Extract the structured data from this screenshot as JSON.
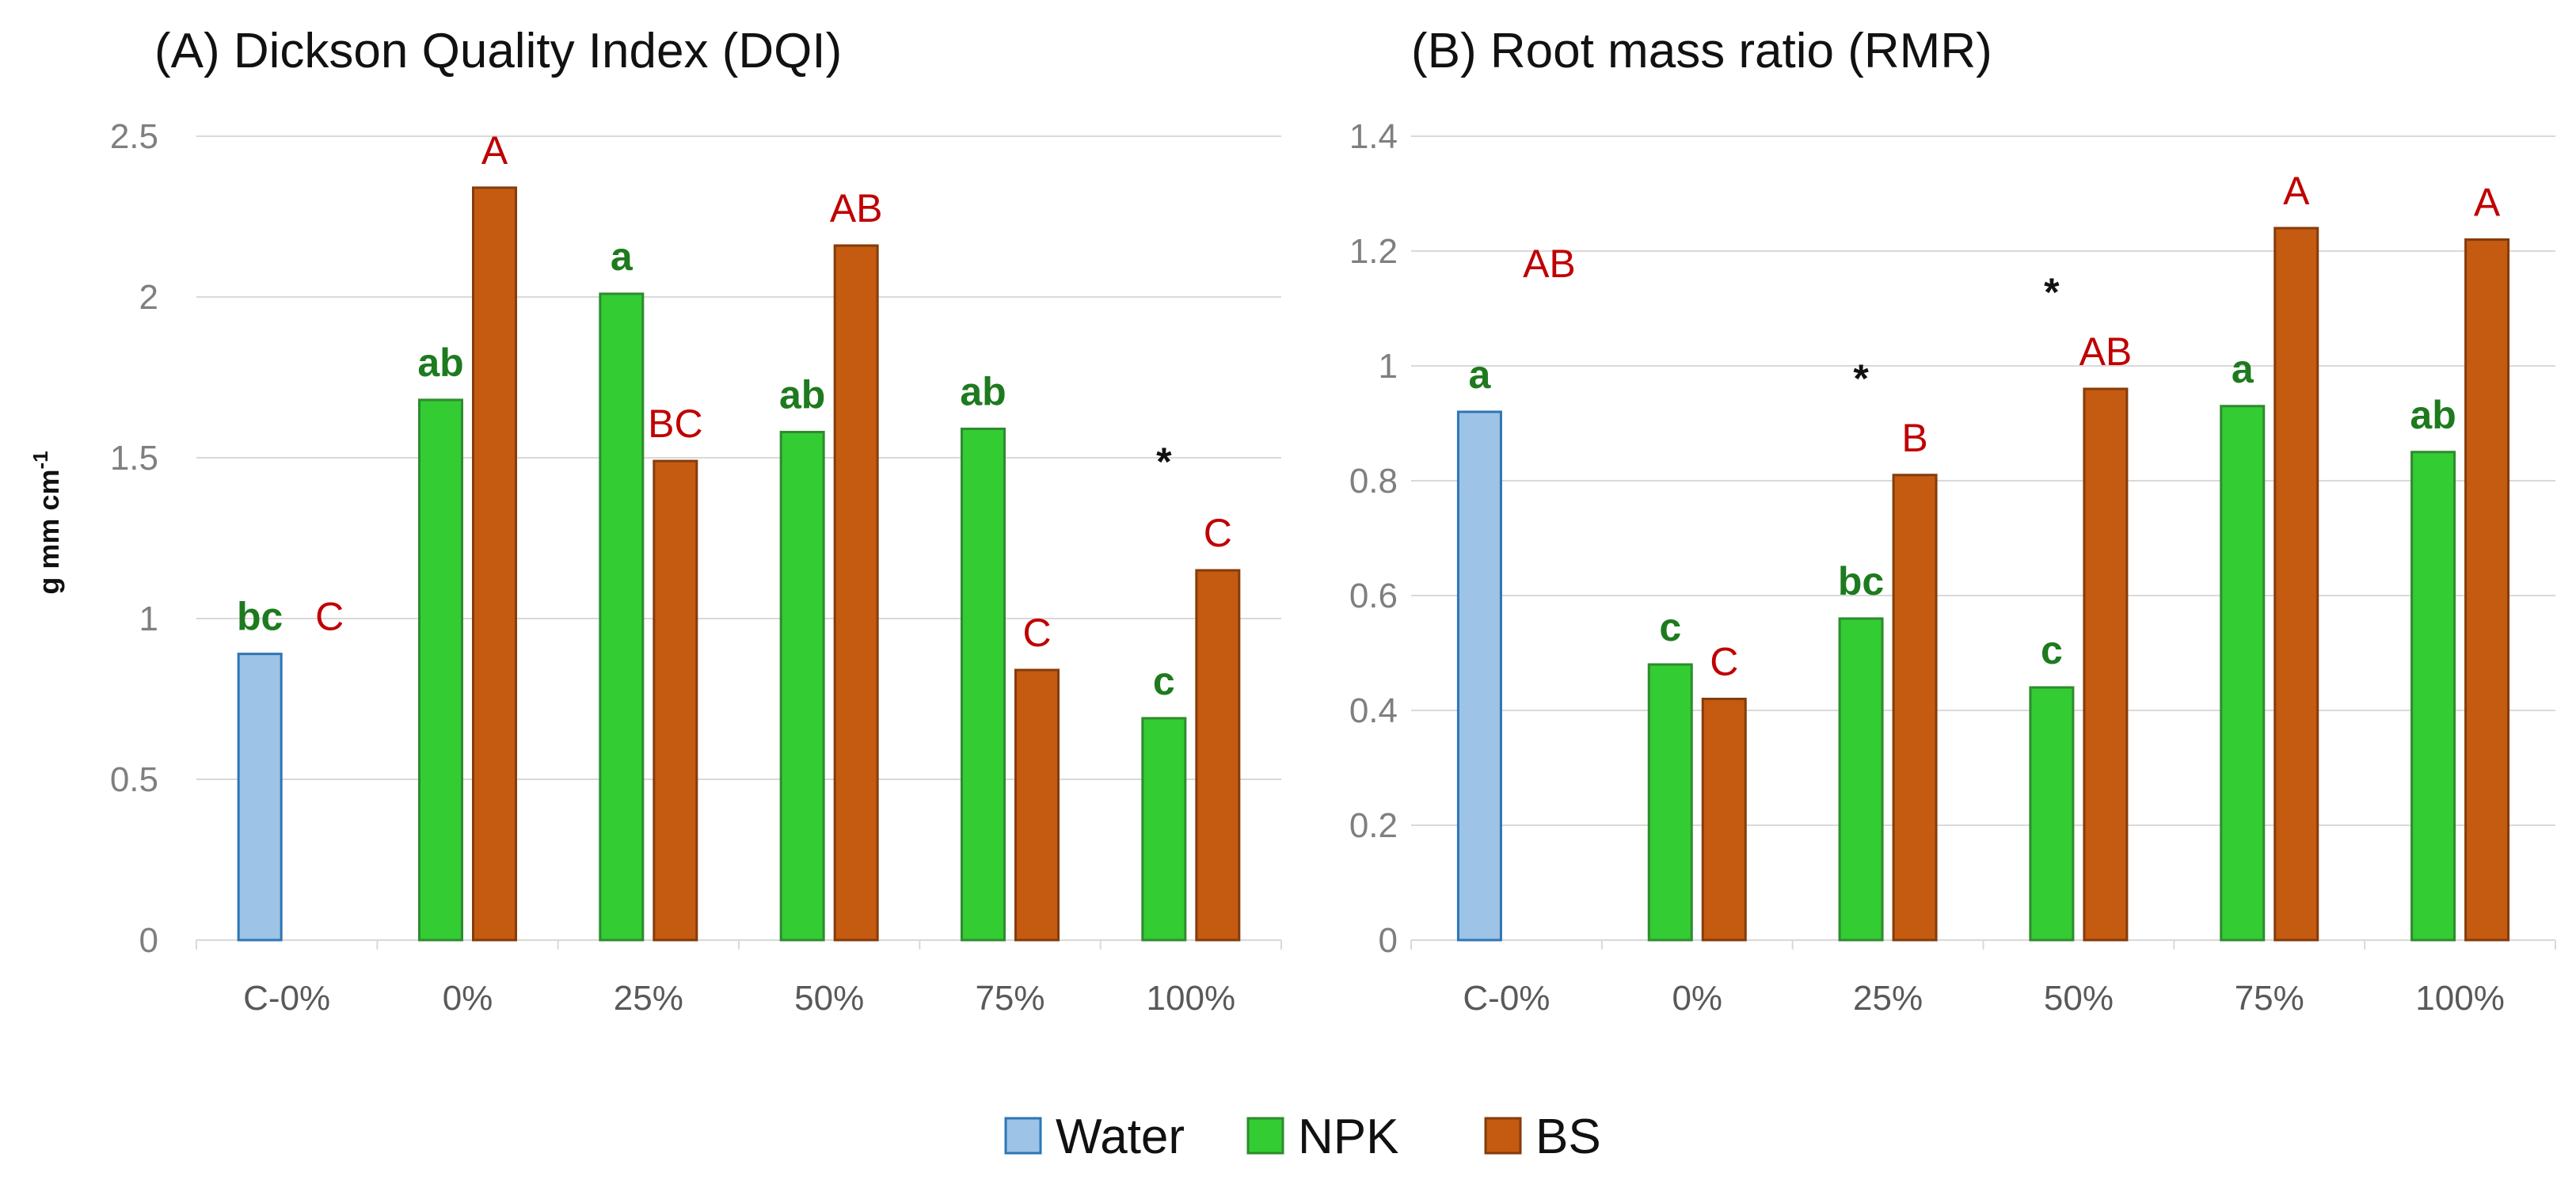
{
  "legend": [
    {
      "name": "Water",
      "color": "#9dc3e6",
      "stroke": "#2e75b6"
    },
    {
      "name": "NPK",
      "color": "#33cc33",
      "stroke": "#2e8b2e"
    },
    {
      "name": "BS",
      "color": "#c55a11",
      "stroke": "#843c0c"
    }
  ],
  "colors": {
    "npk_label": "#1e7a1e",
    "bs_label": "#c00000",
    "star": "#111111",
    "grid": "#d9d9d9",
    "axis": "#d9d9d9"
  },
  "shared_ylabel": {
    "main": "g mm cm",
    "sup": "-1"
  },
  "chart_data": [
    {
      "id": "A",
      "type": "bar",
      "title": "(A) Dickson Quality Index (DQI)",
      "ylabel": "g mm cm-1",
      "xlabel": "",
      "ylim": [
        0,
        2.5
      ],
      "yticks": [
        0,
        0.5,
        1,
        1.5,
        2,
        2.5
      ],
      "ytick_labels": [
        "0",
        "0.5",
        "1",
        "1.5",
        "2",
        "2.5"
      ],
      "categories": [
        "C-0%",
        "0%",
        "25%",
        "50%",
        "75%",
        "100%"
      ],
      "grid": true,
      "series": [
        {
          "name": "Water",
          "values": [
            0.89,
            null,
            null,
            null,
            null,
            null
          ],
          "labels": [
            "",
            "",
            "",
            "",
            "",
            ""
          ]
        },
        {
          "name": "NPK",
          "values": [
            null,
            1.68,
            2.01,
            1.58,
            1.59,
            0.69
          ],
          "labels": [
            "bc",
            "ab",
            "a",
            "ab",
            "ab",
            "c"
          ]
        },
        {
          "name": "BS",
          "values": [
            null,
            2.34,
            1.49,
            2.16,
            0.84,
            1.15
          ],
          "labels": [
            "C",
            "A",
            "BC",
            "AB",
            "C",
            "C"
          ]
        }
      ],
      "stars": [
        5
      ]
    },
    {
      "id": "B",
      "type": "bar",
      "title": "(B) Root mass ratio (RMR)",
      "ylabel": "g mm cm-1",
      "xlabel": "",
      "ylim": [
        0,
        1.4
      ],
      "yticks": [
        0,
        0.2,
        0.4,
        0.6,
        0.8,
        1,
        1.2,
        1.4
      ],
      "ytick_labels": [
        "0",
        "0.2",
        "0.4",
        "0.6",
        "0.8",
        "1",
        "1.2",
        "1.4"
      ],
      "categories": [
        "C-0%",
        "0%",
        "25%",
        "50%",
        "75%",
        "100%"
      ],
      "grid": true,
      "series": [
        {
          "name": "Water",
          "values": [
            0.92,
            null,
            null,
            null,
            null,
            null
          ],
          "labels": [
            "",
            "",
            "",
            "",
            "",
            ""
          ]
        },
        {
          "name": "NPK",
          "values": [
            null,
            0.48,
            0.56,
            0.44,
            0.93,
            0.85
          ],
          "labels": [
            "a",
            "c",
            "bc",
            "c",
            "a",
            "ab"
          ]
        },
        {
          "name": "BS",
          "values": [
            null,
            0.42,
            0.81,
            0.96,
            1.24,
            1.22
          ],
          "labels": [
            "AB",
            "C",
            "B",
            "AB",
            "A",
            "A"
          ]
        }
      ],
      "stars": [
        2,
        3
      ]
    }
  ]
}
